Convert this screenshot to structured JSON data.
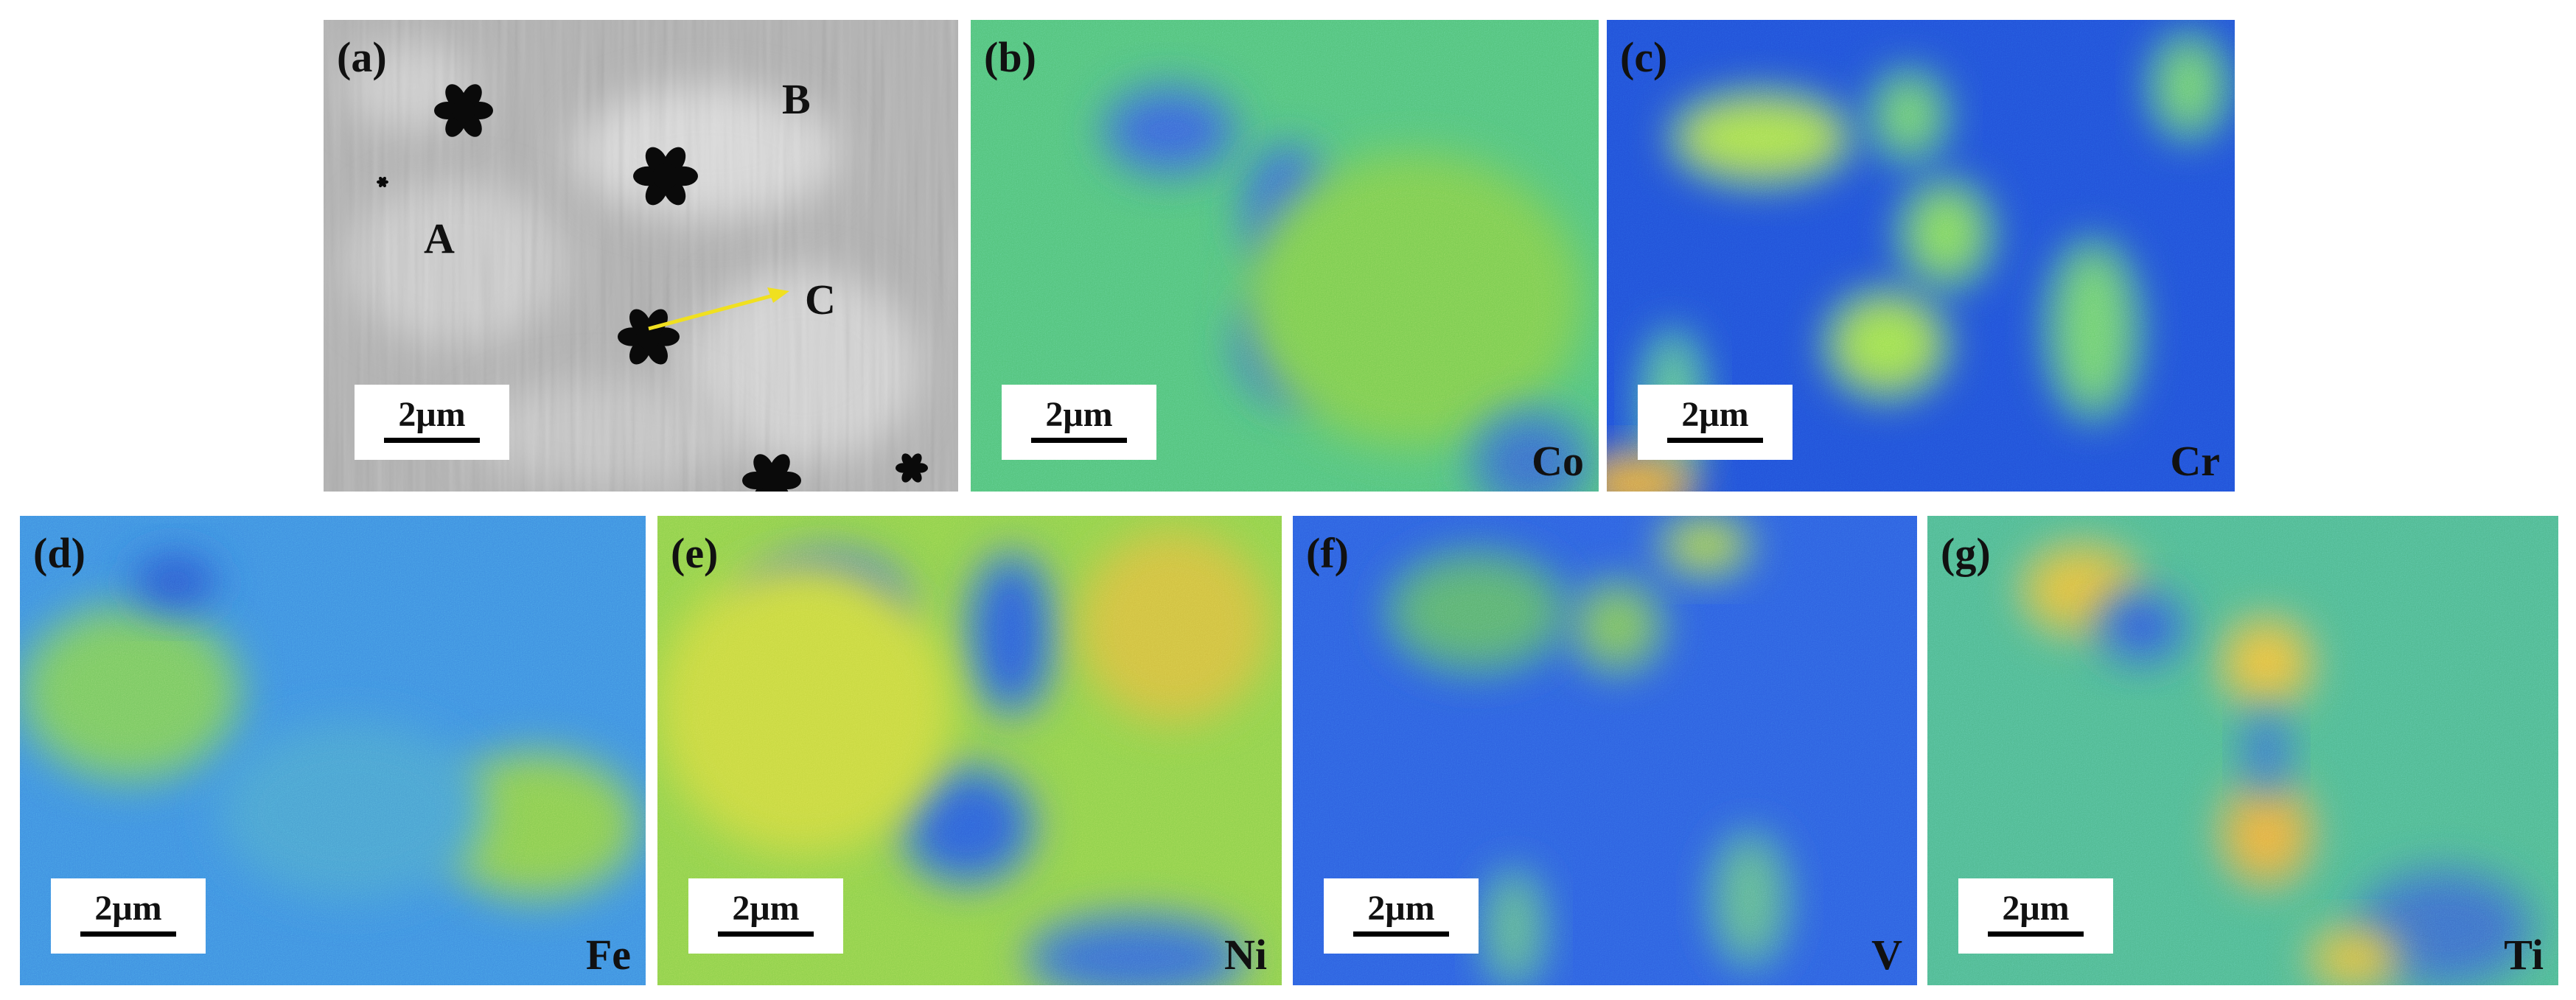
{
  "panels": [
    {
      "label": "(a)",
      "scale_bar": "2μm",
      "points": [
        "A",
        "B",
        "C"
      ]
    },
    {
      "label": "(b)",
      "scale_bar": "2μm",
      "element": "Co"
    },
    {
      "label": "(c)",
      "scale_bar": "2μm",
      "element": "Cr"
    },
    {
      "label": "(d)",
      "scale_bar": "2μm",
      "element": "Fe"
    },
    {
      "label": "(e)",
      "scale_bar": "2μm",
      "element": "Ni"
    },
    {
      "label": "(f)",
      "scale_bar": "2μm",
      "element": "V"
    },
    {
      "label": "(g)",
      "scale_bar": "2μm",
      "element": "Ti"
    }
  ]
}
